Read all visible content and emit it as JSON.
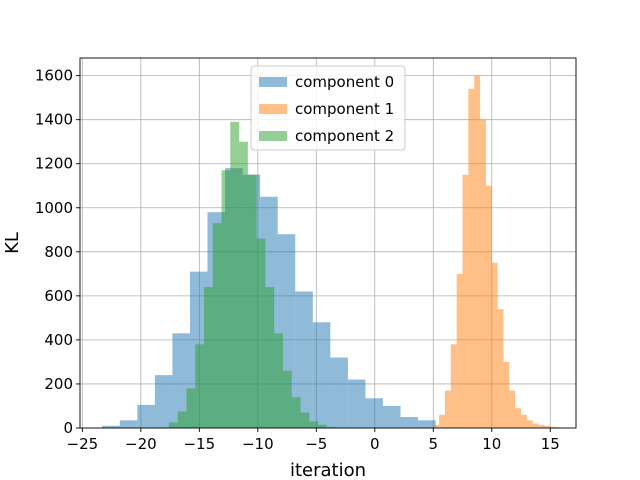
{
  "chart_data": {
    "type": "histogram",
    "xlabel": "iteration",
    "ylabel": "KL",
    "xlim": [
      -25.2,
      17.2
    ],
    "ylim": [
      0,
      1680
    ],
    "xticks": [
      -25,
      -20,
      -15,
      -10,
      -5,
      0,
      5,
      10,
      15
    ],
    "yticks": [
      0,
      200,
      400,
      600,
      800,
      1000,
      1200,
      1400,
      1600
    ],
    "grid": true,
    "legend_position": "upper-center",
    "series": [
      {
        "name": "component 0",
        "color": "#1f77b4",
        "opacity": 0.5,
        "bin_edges": [
          -23.3,
          -21.8,
          -20.3,
          -18.8,
          -17.3,
          -15.8,
          -14.3,
          -12.8,
          -11.3,
          -9.8,
          -8.3,
          -6.8,
          -5.3,
          -3.8,
          -2.3,
          -0.8,
          0.7,
          2.2,
          3.7,
          5.2
        ],
        "counts": [
          10,
          35,
          105,
          240,
          430,
          710,
          980,
          1180,
          1150,
          1050,
          880,
          620,
          480,
          320,
          220,
          135,
          100,
          50,
          35
        ]
      },
      {
        "name": "component 1",
        "color": "#ff7f0e",
        "opacity": 0.5,
        "bin_edges": [
          5.0,
          5.5,
          6.0,
          6.5,
          7.0,
          7.5,
          8.0,
          8.5,
          9.0,
          9.5,
          10.0,
          10.5,
          11.0,
          11.5,
          12.0,
          12.5,
          13.0,
          13.5,
          14.0,
          14.5,
          15.0,
          15.5,
          16.0
        ],
        "counts": [
          15,
          60,
          170,
          380,
          700,
          1150,
          1540,
          1600,
          1400,
          1100,
          750,
          540,
          300,
          170,
          90,
          60,
          35,
          20,
          15,
          10,
          5,
          3
        ]
      },
      {
        "name": "component 2",
        "color": "#2ca02c",
        "opacity": 0.5,
        "bin_edges": [
          -17.6,
          -16.85,
          -16.1,
          -15.35,
          -14.6,
          -13.85,
          -13.1,
          -12.35,
          -11.6,
          -10.85,
          -10.1,
          -9.35,
          -8.6,
          -7.85,
          -7.1,
          -6.35,
          -5.6,
          -4.85,
          -4.1,
          -3.35
        ],
        "counts": [
          25,
          75,
          180,
          380,
          640,
          930,
          1170,
          1390,
          1300,
          1150,
          860,
          640,
          430,
          260,
          140,
          70,
          30,
          15,
          5
        ]
      }
    ]
  }
}
